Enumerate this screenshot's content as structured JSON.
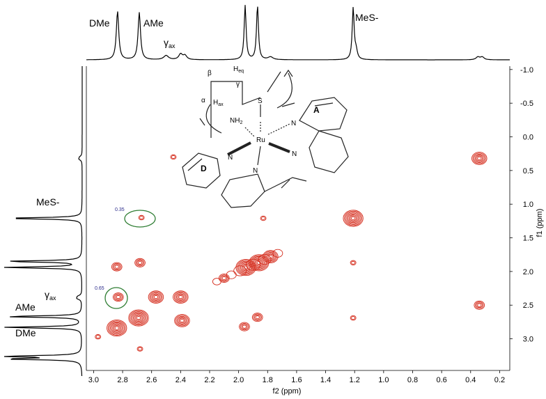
{
  "chart_data": {
    "type": "heatmap",
    "title": "",
    "xlabel": "f2 (ppm)",
    "ylabel": "f1 (ppm)",
    "xlim": [
      3.05,
      0.13
    ],
    "ylim": [
      -1.05,
      3.47
    ],
    "x_ticks": [
      "3.0",
      "2.8",
      "2.6",
      "2.4",
      "2.2",
      "2.0",
      "1.8",
      "1.6",
      "1.4",
      "1.2",
      "1.0",
      "0.8",
      "0.6",
      "0.4",
      "0.2"
    ],
    "y_ticks": [
      "-1.0",
      "-0.5",
      "0.0",
      "0.5",
      "1.0",
      "1.5",
      "2.0",
      "2.5",
      "3.0"
    ],
    "top_projection_labels": [
      {
        "text": "DMe",
        "ppm": 2.83
      },
      {
        "text": "AMe",
        "ppm": 2.68
      },
      {
        "text": "γax",
        "ppm": 2.4
      },
      {
        "text": "MeS-",
        "ppm": 1.21
      }
    ],
    "left_projection_labels": [
      {
        "text": "MeS-",
        "ppm": 1.21
      },
      {
        "text": "γax",
        "ppm": 2.4
      },
      {
        "text": "AMe",
        "ppm": 2.68
      },
      {
        "text": "DMe",
        "ppm": 2.83
      }
    ],
    "cross_peak_annotations": [
      {
        "text": "0.35",
        "f2": 2.67,
        "f1": 1.2
      },
      {
        "text": "0.65",
        "f2": 2.83,
        "f1": 2.38
      }
    ],
    "peaks": [
      {
        "f2": 2.84,
        "f1": 2.84,
        "size": 3
      },
      {
        "f2": 2.69,
        "f1": 2.69,
        "size": 3
      },
      {
        "f2": 2.4,
        "f1": 2.38,
        "size": 2
      },
      {
        "f2": 2.39,
        "f1": 2.73,
        "size": 2
      },
      {
        "f2": 2.57,
        "f1": 2.38,
        "size": 2
      },
      {
        "f2": 2.84,
        "f1": 1.93,
        "size": 1
      },
      {
        "f2": 2.68,
        "f1": 1.87,
        "size": 1
      },
      {
        "f2": 2.83,
        "f1": 2.38,
        "size": 1
      },
      {
        "f2": 2.67,
        "f1": 1.2,
        "size": 0
      },
      {
        "f2": 2.68,
        "f1": 3.15,
        "size": 0
      },
      {
        "f2": 2.45,
        "f1": 0.3,
        "size": 0
      },
      {
        "f2": 2.1,
        "f1": 2.1,
        "size": 1
      },
      {
        "f2": 1.95,
        "f1": 1.94,
        "size": 3
      },
      {
        "f2": 1.86,
        "f1": 1.87,
        "size": 3
      },
      {
        "f2": 1.78,
        "f1": 1.78,
        "size": 2
      },
      {
        "f2": 1.96,
        "f1": 2.82,
        "size": 1
      },
      {
        "f2": 1.87,
        "f1": 2.68,
        "size": 1
      },
      {
        "f2": 1.21,
        "f1": 1.21,
        "size": 3
      },
      {
        "f2": 1.21,
        "f1": 1.87,
        "size": 0
      },
      {
        "f2": 1.21,
        "f1": 2.69,
        "size": 0
      },
      {
        "f2": 0.34,
        "f1": 0.32,
        "size": 2
      },
      {
        "f2": 0.34,
        "f1": 2.5,
        "size": 1
      },
      {
        "f2": 2.97,
        "f1": 2.97,
        "size": 0
      },
      {
        "f2": 1.83,
        "f1": 1.21,
        "size": 0
      }
    ],
    "grid": false,
    "legend": "none"
  },
  "molecule": {
    "labels": [
      "β",
      "Heq",
      "γ",
      "α",
      "Hax",
      "S",
      "NH2",
      "Ru",
      "A",
      "D",
      "N",
      "N",
      "N",
      "N"
    ]
  },
  "colors": {
    "contour": "#d42a1a",
    "ellipse": "#2e7d32",
    "annotation": "#2a2a8a",
    "line": "#000000"
  }
}
